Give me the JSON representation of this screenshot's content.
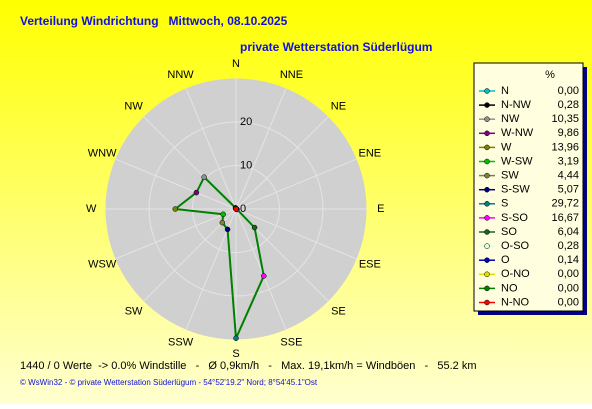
{
  "chart_data": {
    "type": "radar",
    "title": "Verteilung Windrichtung   Mittwoch, 08.10.2025",
    "subtitle": "private Wetterstation Süderlügum",
    "directions": [
      "N",
      "NNE",
      "NE",
      "ENE",
      "E",
      "ESE",
      "SE",
      "SSE",
      "S",
      "SSW",
      "SW",
      "WSW",
      "W",
      "WNW",
      "NW",
      "NNW"
    ],
    "rlim": [
      0,
      30
    ],
    "rticks": [
      0,
      10,
      20
    ],
    "line_color": "#008000",
    "legend_title": "%",
    "series": [
      {
        "name": "Windrichtung",
        "categories": [
          "N",
          "N-NW",
          "NW",
          "W-NW",
          "W",
          "W-SW",
          "SW",
          "S-SW",
          "S",
          "S-SO",
          "SO",
          "O-SO",
          "O",
          "O-NO",
          "NO",
          "N-NO"
        ],
        "values": [
          0,
          0.28,
          10.35,
          9.86,
          13.96,
          3.19,
          4.44,
          5.07,
          29.72,
          16.67,
          6.04,
          0.28,
          0.14,
          0,
          0,
          0
        ],
        "value_labels": [
          "0,00",
          "0,28",
          "10,35",
          "9,86",
          "13,96",
          "3,19",
          "4,44",
          "5,07",
          "29,72",
          "16,67",
          "6,04",
          "0,28",
          "0,14",
          "0,00",
          "0,00",
          "0,00"
        ],
        "colors": [
          "#00c0c0",
          "#000000",
          "#909090",
          "#800080",
          "#808000",
          "#00c000",
          "#808040",
          "#000080",
          "#008080",
          "#ff00ff",
          "#206020",
          "#e0ffe0",
          "#0000c0",
          "#e0e000",
          "#008000",
          "#ff0000"
        ]
      }
    ],
    "footer_stats": "1440 / 0 Werte  -> 0.0% Windstille   -   Ø 0,9km/h   -   Max. 19,1km/h = Windböen   -   55.2 km",
    "copyright": "© WsWin32  -  © private Wetterstation Süderlügum  -  54°52'19.2\" Nord; 8°54'45.1\"Ost"
  }
}
